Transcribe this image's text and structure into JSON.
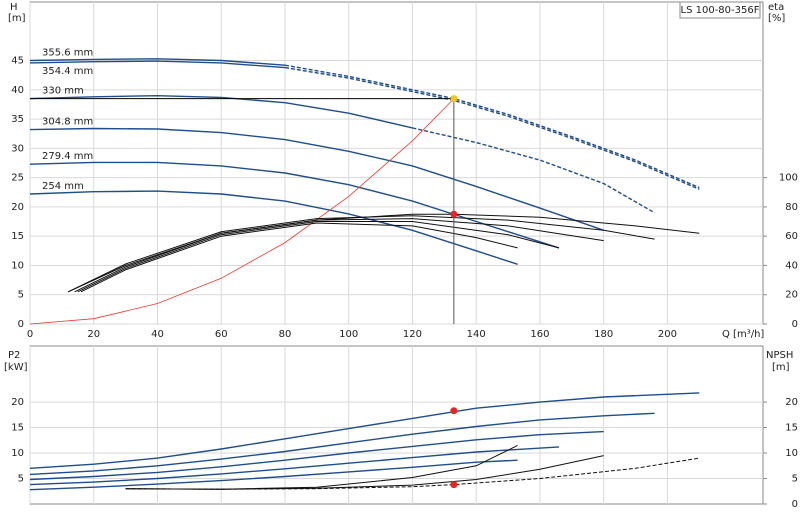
{
  "chart_data": [
    {
      "type": "line",
      "title": "LS 100-80-356F",
      "xlabel": "Q [m³/h]",
      "ylabel": "H",
      "yunit": "[m]",
      "y2label": "eta",
      "y2unit": "[%]",
      "xlim": [
        0,
        230
      ],
      "xticks": [
        0,
        20,
        40,
        60,
        80,
        100,
        120,
        140,
        160,
        180,
        200
      ],
      "ylim": [
        0,
        55
      ],
      "yticks": [
        0,
        5,
        10,
        15,
        20,
        25,
        30,
        35,
        40,
        45
      ],
      "y2lim": [
        0,
        220
      ],
      "y2ticks": [
        0,
        20,
        40,
        60,
        80,
        100
      ],
      "grid": true,
      "series": [
        {
          "name": "355.6 mm",
          "color": "#1f4e8c",
          "x": [
            0,
            20,
            40,
            60,
            80
          ],
          "values": [
            45,
            45.2,
            45.3,
            45,
            44.2
          ]
        },
        {
          "color": "#1f4e8c",
          "dash": true,
          "x": [
            80,
            100,
            120,
            133,
            150,
            170,
            190,
            210
          ],
          "values": [
            44.2,
            42.3,
            40,
            38.5,
            35.8,
            32,
            28,
            23.3
          ]
        },
        {
          "name": "354.4 mm",
          "color": "#1f4e8c",
          "label_side": "below",
          "x": [
            0,
            20,
            40,
            60,
            80
          ],
          "values": [
            44.6,
            44.8,
            44.9,
            44.6,
            43.8
          ]
        },
        {
          "color": "#1f4e8c",
          "dash": true,
          "x": [
            80,
            100,
            120,
            133,
            150,
            170,
            190,
            210
          ],
          "values": [
            43.8,
            42,
            39.7,
            38.2,
            35.5,
            31.7,
            27.7,
            23
          ]
        },
        {
          "name": "330 mm",
          "color": "#1f4e8c",
          "x": [
            0,
            20,
            40,
            60,
            80,
            100,
            120
          ],
          "values": [
            38.5,
            38.8,
            39,
            38.7,
            37.8,
            36,
            33.5
          ]
        },
        {
          "color": "#1f4e8c",
          "dash": true,
          "x": [
            120,
            140,
            160,
            180,
            196
          ],
          "values": [
            33.5,
            31,
            28,
            24,
            19
          ]
        },
        {
          "name": "304.8 mm",
          "color": "#1f4e8c",
          "x": [
            0,
            20,
            40,
            60,
            80,
            100,
            120,
            140,
            160,
            180
          ],
          "values": [
            33.2,
            33.4,
            33.3,
            32.7,
            31.5,
            29.5,
            27,
            23.5,
            19.8,
            16
          ]
        },
        {
          "name": "279.4 mm",
          "color": "#1f4e8c",
          "x": [
            0,
            20,
            40,
            60,
            80,
            100,
            120,
            140,
            166
          ],
          "values": [
            27.3,
            27.6,
            27.6,
            27,
            25.8,
            23.8,
            21,
            17.5,
            13
          ]
        },
        {
          "name": "254 mm",
          "color": "#1f4e8c",
          "x": [
            0,
            20,
            40,
            60,
            80,
            100,
            120,
            140,
            153
          ],
          "values": [
            22.2,
            22.6,
            22.7,
            22.2,
            21,
            18.8,
            16,
            12.5,
            10.2
          ]
        },
        {
          "color": "#ee3a2e",
          "thin": true,
          "x": [
            0,
            20,
            40,
            60,
            80,
            100,
            120,
            133
          ],
          "values": [
            0,
            0.9,
            3.5,
            7.8,
            13.9,
            21.8,
            31.3,
            38.5
          ]
        },
        {
          "color": "#111111",
          "axis": "y2",
          "x": [
            12,
            30,
            60,
            90,
            120,
            133,
            160,
            190,
            210
          ],
          "values": [
            22,
            40,
            62,
            71,
            75,
            75,
            73,
            67,
            62
          ]
        },
        {
          "color": "#111111",
          "axis": "y2",
          "x": [
            12,
            30,
            60,
            90,
            120,
            150,
            180,
            196
          ],
          "values": [
            22,
            41,
            63,
            72,
            74,
            71,
            64,
            58
          ]
        },
        {
          "color": "#111111",
          "axis": "y2",
          "x": [
            14,
            30,
            60,
            90,
            120,
            150,
            180
          ],
          "values": [
            22,
            39,
            62,
            71,
            72,
            67,
            57
          ]
        },
        {
          "color": "#111111",
          "axis": "y2",
          "x": [
            15,
            30,
            60,
            90,
            120,
            150,
            166
          ],
          "values": [
            22,
            38,
            61,
            70,
            70,
            61,
            52
          ]
        },
        {
          "color": "#111111",
          "axis": "y2",
          "x": [
            16,
            30,
            60,
            90,
            120,
            140,
            153
          ],
          "values": [
            22,
            37,
            60,
            69,
            67,
            59,
            52
          ]
        }
      ],
      "points": [
        {
          "x": 133,
          "y": 38.5,
          "color": "#f5c518",
          "guides": true
        },
        {
          "x": 133,
          "y": 75,
          "axis": "y2",
          "color": "#ee2222"
        }
      ]
    },
    {
      "type": "line",
      "ylabel": "P2",
      "yunit": "[kW]",
      "y2label": "NPSH",
      "y2unit": "[m]",
      "xlim": [
        0,
        230
      ],
      "ylim": [
        0,
        31
      ],
      "yticks": [
        5,
        10,
        15,
        20
      ],
      "y2lim": [
        0,
        31
      ],
      "y2ticks": [
        0,
        5,
        10,
        15,
        20
      ],
      "grid": true,
      "series": [
        {
          "color": "#1f4e8c",
          "x": [
            0,
            20,
            40,
            60,
            80,
            100,
            120,
            140,
            160,
            180,
            210
          ],
          "values": [
            7,
            7.8,
            9,
            10.8,
            12.8,
            14.8,
            16.8,
            18.8,
            20,
            21,
            21.8
          ]
        },
        {
          "color": "#1f4e8c",
          "x": [
            0,
            20,
            40,
            60,
            80,
            100,
            120,
            140,
            160,
            180,
            196
          ],
          "values": [
            5.8,
            6.5,
            7.5,
            8.8,
            10.3,
            12,
            13.7,
            15.2,
            16.5,
            17.3,
            17.8
          ]
        },
        {
          "color": "#1f4e8c",
          "x": [
            0,
            20,
            40,
            60,
            80,
            100,
            120,
            140,
            160,
            180
          ],
          "values": [
            4.8,
            5.4,
            6.2,
            7.3,
            8.6,
            10,
            11.3,
            12.6,
            13.6,
            14.2
          ]
        },
        {
          "color": "#1f4e8c",
          "x": [
            0,
            20,
            40,
            60,
            80,
            100,
            120,
            140,
            166
          ],
          "values": [
            3.8,
            4.3,
            5,
            5.9,
            6.9,
            8,
            9.1,
            10.2,
            11.2
          ]
        },
        {
          "color": "#1f4e8c",
          "x": [
            0,
            20,
            40,
            60,
            80,
            100,
            120,
            140,
            153
          ],
          "values": [
            2.8,
            3.3,
            3.9,
            4.6,
            5.4,
            6.3,
            7.2,
            8.2,
            8.6
          ]
        },
        {
          "color": "#111111",
          "axis": "y2",
          "dash": true,
          "x": [
            30,
            60,
            90,
            120,
            133,
            160,
            190,
            210
          ],
          "values": [
            3,
            2.9,
            3,
            3.4,
            3.8,
            5,
            7,
            9
          ]
        },
        {
          "color": "#111111",
          "axis": "y2",
          "x": [
            30,
            60,
            90,
            120,
            140,
            160,
            180
          ],
          "values": [
            3,
            2.9,
            3.1,
            3.7,
            4.8,
            6.8,
            9.5
          ]
        },
        {
          "color": "#111111",
          "axis": "y2",
          "x": [
            30,
            60,
            90,
            120,
            140,
            153
          ],
          "values": [
            3,
            2.9,
            3.3,
            5.2,
            7.5,
            11.5
          ]
        }
      ],
      "points": [
        {
          "x": 133,
          "y": 18.3,
          "color": "#ee2222"
        },
        {
          "x": 133,
          "y": 3.8,
          "axis": "y2",
          "color": "#ee2222"
        }
      ]
    }
  ]
}
